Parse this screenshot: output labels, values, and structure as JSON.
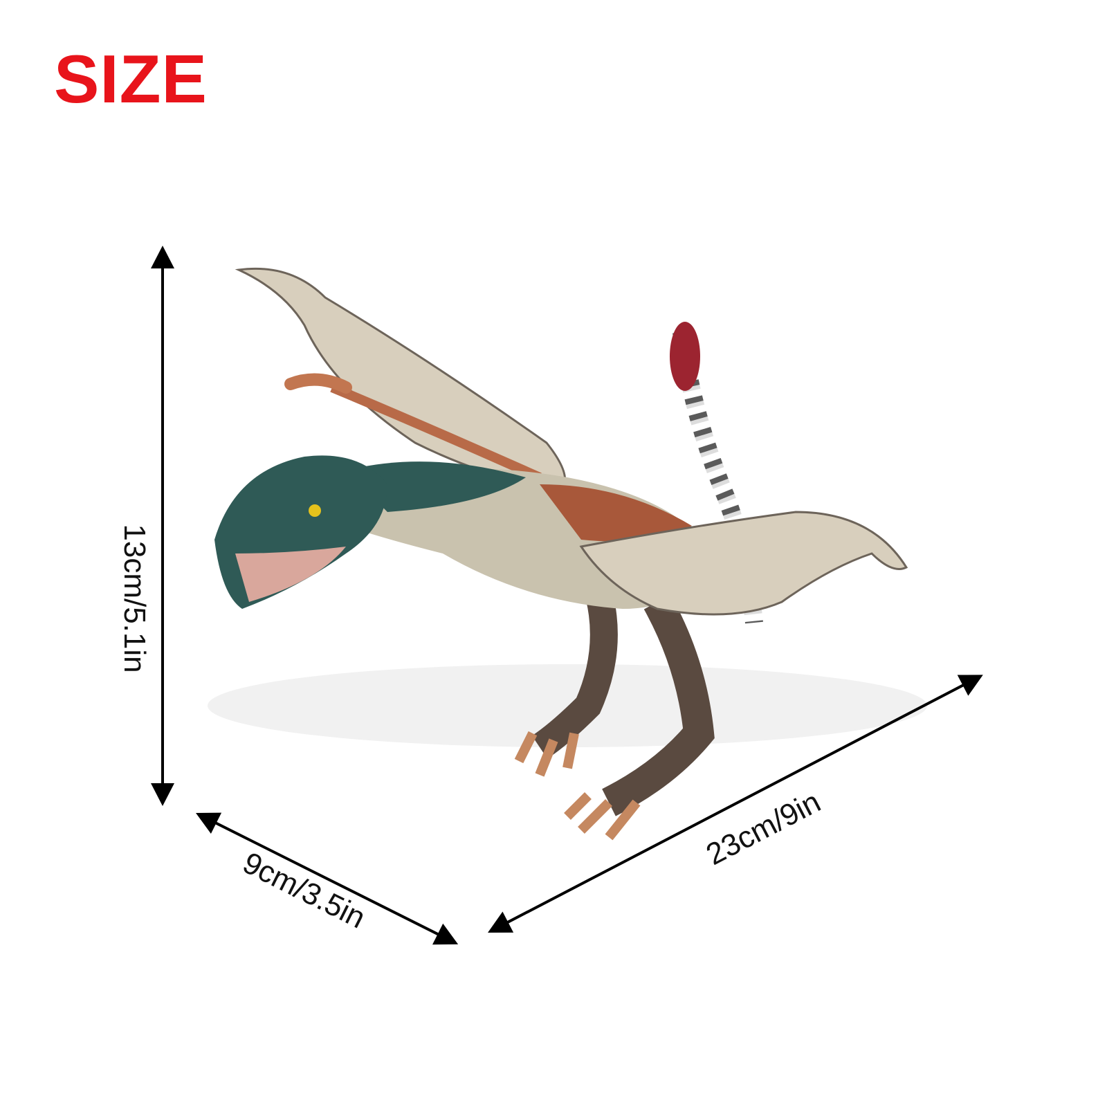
{
  "title": "SIZE",
  "colors": {
    "title": "#e8141b",
    "arrows": "#000000"
  },
  "dimensions": {
    "height": "13cm/5.1in",
    "width": "9cm/3.5in",
    "length": "23cm/9in"
  },
  "image": {
    "subject": "dinosaur-figure"
  }
}
